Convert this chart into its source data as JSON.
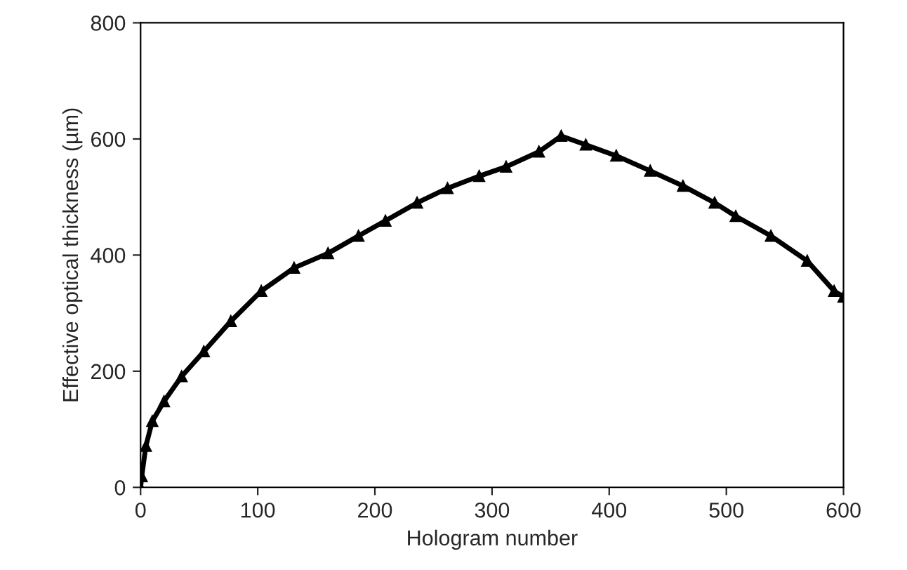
{
  "chart_data": {
    "type": "line",
    "xlabel": "Hologram number",
    "ylabel": "Effective optical thickness (µm)",
    "x": [
      0,
      1,
      4.5,
      10,
      20,
      35,
      54,
      77,
      103,
      131,
      160,
      186,
      209,
      236,
      262,
      289,
      312,
      340,
      359,
      380,
      406,
      435,
      463,
      490,
      508,
      538,
      569,
      592,
      600
    ],
    "series": [
      {
        "color": "#000000",
        "values": [
          0,
          19,
          71,
          114,
          148,
          191,
          234,
          286,
          338,
          378,
          403,
          433,
          459,
          490,
          515,
          536,
          552,
          578,
          605,
          590,
          571,
          545,
          519,
          490,
          467,
          433,
          390,
          338,
          328
        ]
      }
    ],
    "xlim": [
      0,
      600
    ],
    "xticks": [
      0,
      100,
      200,
      300,
      400,
      500,
      600
    ],
    "ylim": [
      0,
      800
    ],
    "yticks": [
      0,
      200,
      400,
      600,
      800
    ],
    "grid": false,
    "legend": false,
    "marker": "triangle",
    "line_style": "solid"
  }
}
